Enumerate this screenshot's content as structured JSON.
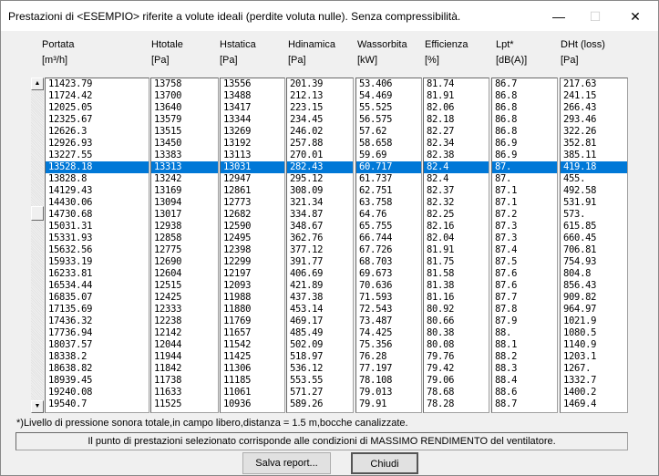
{
  "window": {
    "title": "Prestazioni di <ESEMPIO> riferite a volute ideali (perdite voluta nulle). Senza compressibilità.",
    "minimize": "—",
    "maximize": "☐",
    "close": "✕"
  },
  "columns": [
    {
      "name": "Portata",
      "unit": "[m³/h]"
    },
    {
      "name": "Htotale",
      "unit": "[Pa]"
    },
    {
      "name": "Hstatica",
      "unit": "[Pa]"
    },
    {
      "name": "Hdinamica",
      "unit": "[Pa]"
    },
    {
      "name": "Wassorbita",
      "unit": "[kW]"
    },
    {
      "name": "Efficienza",
      "unit": "[%]"
    },
    {
      "name": "Lpt*",
      "unit": "[dB(A)]"
    },
    {
      "name": "DHt (loss)",
      "unit": "[Pa]"
    }
  ],
  "selected_row": 7,
  "values": [
    [
      "11423.79",
      "11724.42",
      "12025.05",
      "12325.67",
      "12626.3",
      "12926.93",
      "13227.55",
      "13528.18",
      "13828.8",
      "14129.43",
      "14430.06",
      "14730.68",
      "15031.31",
      "15331.93",
      "15632.56",
      "15933.19",
      "16233.81",
      "16534.44",
      "16835.07",
      "17135.69",
      "17436.32",
      "17736.94",
      "18037.57",
      "18338.2",
      "18638.82",
      "18939.45",
      "19240.08",
      "19540.7"
    ],
    [
      "13758",
      "13700",
      "13640",
      "13579",
      "13515",
      "13450",
      "13383",
      "13313",
      "13242",
      "13169",
      "13094",
      "13017",
      "12938",
      "12858",
      "12775",
      "12690",
      "12604",
      "12515",
      "12425",
      "12333",
      "12238",
      "12142",
      "12044",
      "11944",
      "11842",
      "11738",
      "11633",
      "11525"
    ],
    [
      "13556",
      "13488",
      "13417",
      "13344",
      "13269",
      "13192",
      "13113",
      "13031",
      "12947",
      "12861",
      "12773",
      "12682",
      "12590",
      "12495",
      "12398",
      "12299",
      "12197",
      "12093",
      "11988",
      "11880",
      "11769",
      "11657",
      "11542",
      "11425",
      "11306",
      "11185",
      "11061",
      "10936"
    ],
    [
      "201.39",
      "212.13",
      "223.15",
      "234.45",
      "246.02",
      "257.88",
      "270.01",
      "282.43",
      "295.12",
      "308.09",
      "321.34",
      "334.87",
      "348.67",
      "362.76",
      "377.12",
      "391.77",
      "406.69",
      "421.89",
      "437.38",
      "453.14",
      "469.17",
      "485.49",
      "502.09",
      "518.97",
      "536.12",
      "553.55",
      "571.27",
      "589.26"
    ],
    [
      "53.406",
      "54.469",
      "55.525",
      "56.575",
      "57.62",
      "58.658",
      "59.69",
      "60.717",
      "61.737",
      "62.751",
      "63.758",
      "64.76",
      "65.755",
      "66.744",
      "67.726",
      "68.703",
      "69.673",
      "70.636",
      "71.593",
      "72.543",
      "73.487",
      "74.425",
      "75.356",
      "76.28",
      "77.197",
      "78.108",
      "79.013",
      "79.91"
    ],
    [
      "81.74",
      "81.91",
      "82.06",
      "82.18",
      "82.27",
      "82.34",
      "82.38",
      "82.4",
      "82.4",
      "82.37",
      "82.32",
      "82.25",
      "82.16",
      "82.04",
      "81.91",
      "81.75",
      "81.58",
      "81.38",
      "81.16",
      "80.92",
      "80.66",
      "80.38",
      "80.08",
      "79.76",
      "79.42",
      "79.06",
      "78.68",
      "78.28"
    ],
    [
      "86.7",
      "86.8",
      "86.8",
      "86.8",
      "86.8",
      "86.9",
      "86.9",
      "87.",
      "87.",
      "87.1",
      "87.1",
      "87.2",
      "87.3",
      "87.3",
      "87.4",
      "87.5",
      "87.6",
      "87.6",
      "87.7",
      "87.8",
      "87.9",
      "88.",
      "88.1",
      "88.2",
      "88.3",
      "88.4",
      "88.6",
      "88.7"
    ],
    [
      "217.63",
      "241.15",
      "266.43",
      "293.46",
      "322.26",
      "352.81",
      "385.11",
      "419.18",
      "455.",
      "492.58",
      "531.91",
      "573.",
      "615.85",
      "660.45",
      "706.81",
      "754.93",
      "804.8",
      "856.43",
      "909.82",
      "964.97",
      "1021.9",
      "1080.5",
      "1140.9",
      "1203.1",
      "1267.",
      "1332.7",
      "1400.2",
      "1469.4"
    ]
  ],
  "footnote": "*)Livello di pressione sonora totale,in campo libero,distanza = 1.5 m,bocche canalizzate.",
  "status": "Il punto di prestazioni selezionato corrisponde alle condizioni di MASSIMO RENDIMENTO del ventilatore.",
  "buttons": {
    "save": "Salva report...",
    "close": "Chiudi"
  },
  "colors": {
    "selection": "#0078d7"
  }
}
